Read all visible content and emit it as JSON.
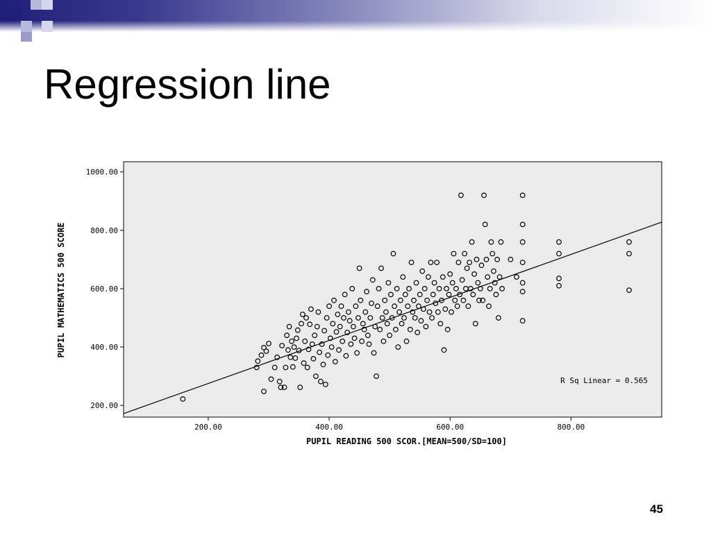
{
  "slide": {
    "title": "Regression line",
    "page_number": "45"
  },
  "colors": {
    "band_dark": "#1f1f7a",
    "band_light": "#d8d8ea",
    "plot_background": "#ebebeb",
    "ink": "#000000"
  },
  "chart_data": {
    "type": "scatter",
    "title": "",
    "xlabel": "PUPIL READING 500 SCOR.[MEAN=500/SD=100]",
    "ylabel": "PUPIL MATHEMATICS 500 SCORE",
    "xlim": [
      60,
      950
    ],
    "ylim": [
      160,
      1035
    ],
    "xticks": [
      200,
      400,
      600,
      800
    ],
    "yticks": [
      200,
      400,
      600,
      800,
      1000
    ],
    "xtick_labels": [
      "200.00",
      "400.00",
      "600.00",
      "800.00"
    ],
    "ytick_labels": [
      "200.00",
      "400.00",
      "600.00",
      "800.00",
      "1000.00"
    ],
    "grid": false,
    "marker": "open-circle",
    "annotation": "R Sq Linear = 0.565",
    "regression_line": {
      "x": [
        60,
        950
      ],
      "y": [
        172,
        828
      ]
    },
    "points": [
      [
        158,
        222
      ],
      [
        292,
        248
      ],
      [
        280,
        330
      ],
      [
        282,
        352
      ],
      [
        288,
        372
      ],
      [
        292,
        398
      ],
      [
        296,
        386
      ],
      [
        300,
        412
      ],
      [
        304,
        290
      ],
      [
        310,
        330
      ],
      [
        314,
        365
      ],
      [
        318,
        282
      ],
      [
        320,
        262
      ],
      [
        322,
        405
      ],
      [
        326,
        262
      ],
      [
        328,
        330
      ],
      [
        330,
        440
      ],
      [
        332,
        390
      ],
      [
        334,
        470
      ],
      [
        336,
        365
      ],
      [
        338,
        420
      ],
      [
        340,
        332
      ],
      [
        342,
        400
      ],
      [
        344,
        362
      ],
      [
        346,
        430
      ],
      [
        348,
        458
      ],
      [
        350,
        388
      ],
      [
        352,
        262
      ],
      [
        354,
        480
      ],
      [
        356,
        512
      ],
      [
        358,
        345
      ],
      [
        360,
        420
      ],
      [
        362,
        500
      ],
      [
        364,
        330
      ],
      [
        366,
        392
      ],
      [
        368,
        478
      ],
      [
        370,
        530
      ],
      [
        372,
        410
      ],
      [
        374,
        360
      ],
      [
        376,
        440
      ],
      [
        378,
        300
      ],
      [
        380,
        470
      ],
      [
        382,
        520
      ],
      [
        384,
        382
      ],
      [
        386,
        282
      ],
      [
        388,
        410
      ],
      [
        390,
        340
      ],
      [
        392,
        456
      ],
      [
        394,
        272
      ],
      [
        396,
        500
      ],
      [
        398,
        372
      ],
      [
        400,
        540
      ],
      [
        402,
        430
      ],
      [
        404,
        400
      ],
      [
        406,
        480
      ],
      [
        408,
        560
      ],
      [
        410,
        350
      ],
      [
        412,
        452
      ],
      [
        414,
        512
      ],
      [
        416,
        390
      ],
      [
        418,
        470
      ],
      [
        420,
        540
      ],
      [
        422,
        420
      ],
      [
        424,
        500
      ],
      [
        426,
        580
      ],
      [
        428,
        370
      ],
      [
        430,
        450
      ],
      [
        432,
        520
      ],
      [
        434,
        490
      ],
      [
        436,
        410
      ],
      [
        438,
        600
      ],
      [
        440,
        470
      ],
      [
        442,
        430
      ],
      [
        444,
        540
      ],
      [
        446,
        380
      ],
      [
        448,
        500
      ],
      [
        450,
        670
      ],
      [
        452,
        560
      ],
      [
        454,
        420
      ],
      [
        456,
        480
      ],
      [
        458,
        460
      ],
      [
        460,
        520
      ],
      [
        462,
        590
      ],
      [
        464,
        440
      ],
      [
        466,
        410
      ],
      [
        468,
        500
      ],
      [
        470,
        550
      ],
      [
        472,
        630
      ],
      [
        474,
        380
      ],
      [
        476,
        470
      ],
      [
        478,
        300
      ],
      [
        480,
        540
      ],
      [
        482,
        600
      ],
      [
        484,
        460
      ],
      [
        486,
        670
      ],
      [
        488,
        500
      ],
      [
        490,
        420
      ],
      [
        492,
        560
      ],
      [
        494,
        520
      ],
      [
        496,
        480
      ],
      [
        498,
        620
      ],
      [
        500,
        440
      ],
      [
        502,
        580
      ],
      [
        504,
        500
      ],
      [
        506,
        720
      ],
      [
        508,
        540
      ],
      [
        510,
        460
      ],
      [
        512,
        600
      ],
      [
        514,
        400
      ],
      [
        516,
        520
      ],
      [
        518,
        560
      ],
      [
        520,
        480
      ],
      [
        522,
        640
      ],
      [
        524,
        500
      ],
      [
        526,
        580
      ],
      [
        528,
        420
      ],
      [
        530,
        540
      ],
      [
        532,
        600
      ],
      [
        534,
        460
      ],
      [
        536,
        690
      ],
      [
        538,
        520
      ],
      [
        540,
        560
      ],
      [
        542,
        500
      ],
      [
        544,
        620
      ],
      [
        546,
        450
      ],
      [
        548,
        540
      ],
      [
        550,
        580
      ],
      [
        552,
        490
      ],
      [
        554,
        660
      ],
      [
        556,
        530
      ],
      [
        558,
        600
      ],
      [
        560,
        470
      ],
      [
        562,
        560
      ],
      [
        564,
        640
      ],
      [
        566,
        520
      ],
      [
        568,
        690
      ],
      [
        570,
        500
      ],
      [
        572,
        580
      ],
      [
        574,
        620
      ],
      [
        576,
        550
      ],
      [
        578,
        690
      ],
      [
        580,
        520
      ],
      [
        582,
        600
      ],
      [
        584,
        480
      ],
      [
        586,
        560
      ],
      [
        588,
        640
      ],
      [
        590,
        390
      ],
      [
        592,
        530
      ],
      [
        594,
        600
      ],
      [
        596,
        460
      ],
      [
        598,
        580
      ],
      [
        600,
        650
      ],
      [
        602,
        520
      ],
      [
        604,
        620
      ],
      [
        606,
        720
      ],
      [
        608,
        560
      ],
      [
        610,
        600
      ],
      [
        612,
        540
      ],
      [
        614,
        690
      ],
      [
        616,
        580
      ],
      [
        618,
        920
      ],
      [
        620,
        630
      ],
      [
        622,
        560
      ],
      [
        624,
        720
      ],
      [
        626,
        600
      ],
      [
        628,
        670
      ],
      [
        630,
        540
      ],
      [
        632,
        690
      ],
      [
        634,
        600
      ],
      [
        636,
        760
      ],
      [
        638,
        580
      ],
      [
        640,
        650
      ],
      [
        642,
        480
      ],
      [
        644,
        700
      ],
      [
        646,
        620
      ],
      [
        648,
        560
      ],
      [
        650,
        600
      ],
      [
        652,
        680
      ],
      [
        654,
        560
      ],
      [
        656,
        920
      ],
      [
        658,
        820
      ],
      [
        660,
        700
      ],
      [
        662,
        640
      ],
      [
        664,
        540
      ],
      [
        666,
        600
      ],
      [
        668,
        760
      ],
      [
        670,
        720
      ],
      [
        672,
        660
      ],
      [
        674,
        620
      ],
      [
        676,
        580
      ],
      [
        678,
        700
      ],
      [
        680,
        500
      ],
      [
        682,
        640
      ],
      [
        684,
        760
      ],
      [
        686,
        600
      ],
      [
        700,
        700
      ],
      [
        710,
        640
      ],
      [
        720,
        920
      ],
      [
        720,
        820
      ],
      [
        720,
        760
      ],
      [
        720,
        690
      ],
      [
        720,
        620
      ],
      [
        720,
        590
      ],
      [
        720,
        490
      ],
      [
        780,
        760
      ],
      [
        780,
        720
      ],
      [
        780,
        635
      ],
      [
        780,
        610
      ],
      [
        896,
        760
      ],
      [
        896,
        720
      ],
      [
        896,
        595
      ]
    ]
  }
}
